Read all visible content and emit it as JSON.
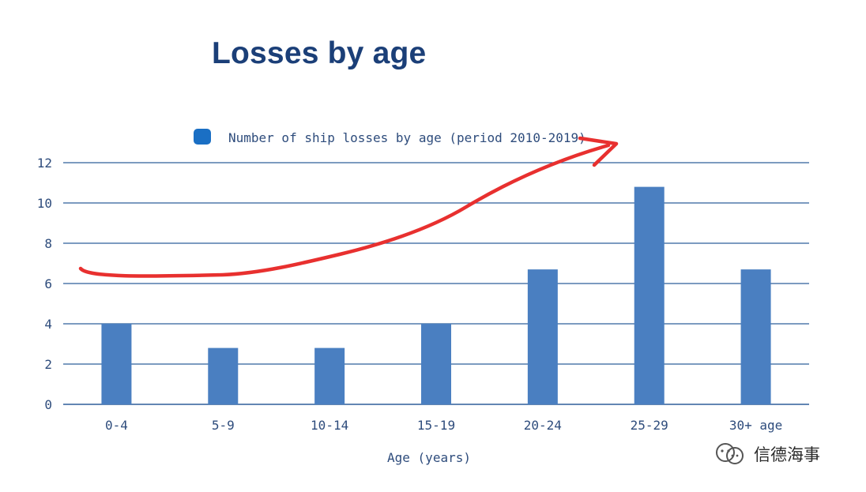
{
  "title": "Losses by age",
  "chart_data": {
    "type": "bar",
    "categories": [
      "0-4",
      "5-9",
      "10-14",
      "15-19",
      "20-24",
      "25-29",
      "30+ age"
    ],
    "series": [
      {
        "name": "Number of ship losses by age (period 2010-2019)",
        "values": [
          4,
          2.8,
          2.8,
          4,
          6.7,
          10.8,
          6.7
        ]
      }
    ],
    "xlabel": "Age (years)",
    "ylabel": "",
    "ylim": [
      0,
      12
    ],
    "yticks": [
      0,
      2,
      4,
      6,
      8,
      10,
      12
    ],
    "grid": true,
    "legend": "top",
    "bar_color": "#4a7fc1",
    "grid_color": "#2f5f9a",
    "text_color": "#2e4c7c",
    "annotation": {
      "type": "hand-drawn red arrow",
      "direction": "up-right",
      "color": "#e8302f"
    }
  },
  "watermark": {
    "text": "信德海事",
    "icon": "wechat-official-account-icon"
  }
}
